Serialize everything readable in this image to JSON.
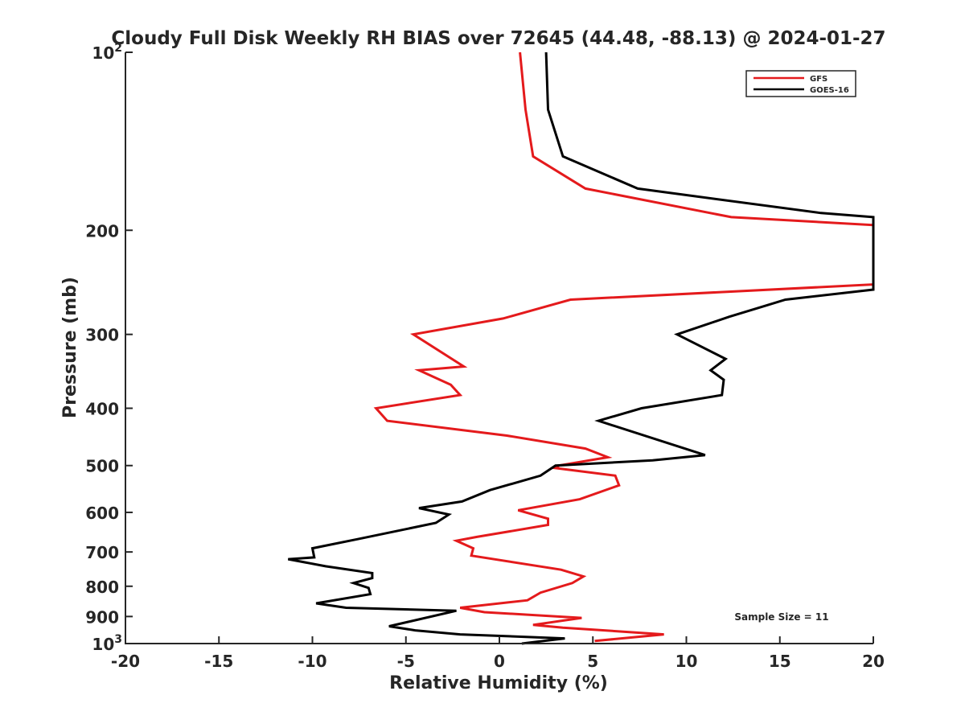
{
  "chart_data": {
    "type": "line",
    "title": "Cloudy Full Disk Weekly RH BIAS over 72645 (44.48, -88.13) @ 2024-01-27",
    "xlabel": "Relative Humidity (%)",
    "ylabel": "Pressure (mb)",
    "xlim": [
      -20,
      20
    ],
    "ylim": [
      100,
      1000
    ],
    "yscale": "log",
    "yreversed": true,
    "grid": false,
    "legend_position": "top-right",
    "xticks": [
      "-20",
      "-15",
      "-10",
      "-5",
      "0",
      "5",
      "10",
      "15",
      "20"
    ],
    "yticks": [
      {
        "value": 100,
        "label": "10",
        "sup": "2"
      },
      {
        "value": 200,
        "label": "200",
        "sup": ""
      },
      {
        "value": 300,
        "label": "300",
        "sup": ""
      },
      {
        "value": 400,
        "label": "400",
        "sup": ""
      },
      {
        "value": 500,
        "label": "500",
        "sup": ""
      },
      {
        "value": 600,
        "label": "600",
        "sup": ""
      },
      {
        "value": 700,
        "label": "700",
        "sup": ""
      },
      {
        "value": 800,
        "label": "800",
        "sup": ""
      },
      {
        "value": 900,
        "label": "900",
        "sup": ""
      },
      {
        "value": 1000,
        "label": "10",
        "sup": "3"
      }
    ],
    "annotation": "Sample Size = 11",
    "series": [
      {
        "name": "GFS",
        "color": "#e41a1c",
        "points": [
          [
            1.1,
            100
          ],
          [
            1.4,
            125
          ],
          [
            1.8,
            150
          ],
          [
            4.6,
            170
          ],
          [
            12.4,
            190
          ],
          [
            20,
            196
          ],
          [
            20,
            247
          ],
          [
            3.8,
            262
          ],
          [
            0.2,
            282
          ],
          [
            -4.6,
            300
          ],
          [
            -1.9,
            340
          ],
          [
            -4.3,
            345
          ],
          [
            -2.6,
            365
          ],
          [
            -2.1,
            380
          ],
          [
            -6.6,
            400
          ],
          [
            -6.0,
            420
          ],
          [
            0.4,
            445
          ],
          [
            4.6,
            468
          ],
          [
            5.8,
            484
          ],
          [
            3.2,
            500
          ],
          [
            3.0,
            505
          ],
          [
            6.2,
            520
          ],
          [
            6.4,
            540
          ],
          [
            4.3,
            570
          ],
          [
            1.0,
            595
          ],
          [
            2.6,
            615
          ],
          [
            2.6,
            630
          ],
          [
            -1.2,
            660
          ],
          [
            -2.3,
            670
          ],
          [
            -1.4,
            690
          ],
          [
            -1.5,
            710
          ],
          [
            3.3,
            750
          ],
          [
            4.5,
            770
          ],
          [
            3.9,
            790
          ],
          [
            2.2,
            820
          ],
          [
            1.5,
            845
          ],
          [
            -2.1,
            870
          ],
          [
            -0.8,
            885
          ],
          [
            4.4,
            905
          ],
          [
            1.8,
            930
          ],
          [
            3.4,
            940
          ],
          [
            8.8,
            965
          ],
          [
            5.1,
            990
          ]
        ]
      },
      {
        "name": "GOES-16",
        "color": "#000000",
        "points": [
          [
            2.5,
            100
          ],
          [
            2.6,
            125
          ],
          [
            3.4,
            150
          ],
          [
            7.4,
            170
          ],
          [
            17.2,
            187
          ],
          [
            20,
            190
          ],
          [
            20,
            252
          ],
          [
            15.3,
            262
          ],
          [
            12.3,
            280
          ],
          [
            9.5,
            300
          ],
          [
            12.1,
            330
          ],
          [
            11.3,
            345
          ],
          [
            12.0,
            358
          ],
          [
            11.9,
            380
          ],
          [
            7.6,
            400
          ],
          [
            5.3,
            420
          ],
          [
            11.0,
            480
          ],
          [
            8.2,
            490
          ],
          [
            3.0,
            500
          ],
          [
            2.2,
            520
          ],
          [
            -0.5,
            550
          ],
          [
            -2.0,
            575
          ],
          [
            -4.3,
            590
          ],
          [
            -2.7,
            605
          ],
          [
            -3.4,
            625
          ],
          [
            -7.5,
            665
          ],
          [
            -10.0,
            690
          ],
          [
            -9.9,
            715
          ],
          [
            -11.3,
            720
          ],
          [
            -9.3,
            740
          ],
          [
            -6.8,
            760
          ],
          [
            -6.8,
            775
          ],
          [
            -7.8,
            790
          ],
          [
            -7.0,
            805
          ],
          [
            -6.9,
            825
          ],
          [
            -9.8,
            855
          ],
          [
            -8.2,
            870
          ],
          [
            -2.3,
            880
          ],
          [
            -5.9,
            935
          ],
          [
            -4.5,
            950
          ],
          [
            -2.1,
            965
          ],
          [
            3.5,
            980
          ],
          [
            1.2,
            1000
          ]
        ]
      }
    ]
  }
}
